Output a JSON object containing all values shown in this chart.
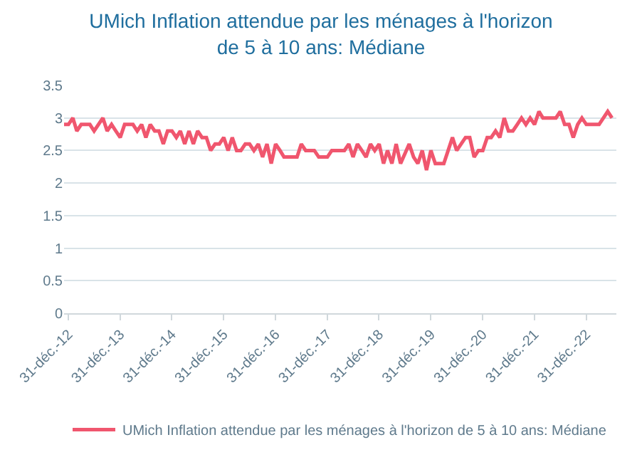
{
  "chart_data": {
    "type": "line",
    "title": "UMich Inflation attendue par les ménages à l'horizon de 5 à 10 ans: Médiane",
    "x": [
      "2012-12",
      "2013-01",
      "2013-02",
      "2013-03",
      "2013-04",
      "2013-06",
      "2013-07",
      "2013-09",
      "2013-10",
      "2013-11",
      "2013-12",
      "2014-01",
      "2014-02",
      "2014-04",
      "2014-05",
      "2014-06",
      "2014-07",
      "2014-08",
      "2014-09",
      "2014-10",
      "2014-11",
      "2014-12",
      "2015-01",
      "2015-02",
      "2015-03",
      "2015-04",
      "2015-05",
      "2015-06",
      "2015-07",
      "2015-08",
      "2015-09",
      "2015-10",
      "2015-11",
      "2015-12",
      "2016-01",
      "2016-02",
      "2016-03",
      "2016-04",
      "2016-05",
      "2016-06",
      "2016-07",
      "2016-08",
      "2016-09",
      "2016-10",
      "2016-11",
      "2016-12",
      "2017-01",
      "2017-02",
      "2017-03",
      "2017-06",
      "2017-07",
      "2017-08",
      "2017-10",
      "2017-11",
      "2017-12",
      "2018-01",
      "2018-02",
      "2018-05",
      "2018-06",
      "2018-07",
      "2018-08",
      "2018-09",
      "2018-10",
      "2018-11",
      "2018-12",
      "2019-01",
      "2019-02",
      "2019-03",
      "2019-04",
      "2019-05",
      "2019-06",
      "2019-08",
      "2019-09",
      "2019-10",
      "2019-11",
      "2019-12",
      "2020-01",
      "2020-02",
      "2020-04",
      "2020-06",
      "2020-07",
      "2020-09",
      "2020-10",
      "2020-11",
      "2020-12",
      "2021-01",
      "2021-02",
      "2021-03",
      "2021-04",
      "2021-05",
      "2021-06",
      "2021-07",
      "2021-08",
      "2021-09",
      "2021-10",
      "2021-11",
      "2021-12",
      "2022-01",
      "2022-02",
      "2022-03",
      "2022-06",
      "2022-07",
      "2022-08",
      "2022-09",
      "2022-10",
      "2022-11",
      "2022-12",
      "2023-01",
      "2023-04",
      "2023-06",
      "2023-07"
    ],
    "series": [
      {
        "name": "UMich Inflation attendue par les ménages à l'horizon de 5 à 10 ans: Médiane",
        "color": "#f0566e",
        "values": [
          2.9,
          2.9,
          3.0,
          2.8,
          2.9,
          2.9,
          2.8,
          3.0,
          2.8,
          2.9,
          2.8,
          2.7,
          2.9,
          2.9,
          2.8,
          2.9,
          2.7,
          2.9,
          2.8,
          2.8,
          2.6,
          2.8,
          2.8,
          2.7,
          2.8,
          2.6,
          2.8,
          2.6,
          2.8,
          2.7,
          2.7,
          2.5,
          2.6,
          2.6,
          2.7,
          2.5,
          2.7,
          2.5,
          2.5,
          2.6,
          2.6,
          2.5,
          2.6,
          2.4,
          2.6,
          2.3,
          2.6,
          2.5,
          2.4,
          2.4,
          2.6,
          2.5,
          2.5,
          2.4,
          2.4,
          2.4,
          2.5,
          2.5,
          2.6,
          2.4,
          2.6,
          2.5,
          2.4,
          2.6,
          2.5,
          2.6,
          2.3,
          2.5,
          2.3,
          2.6,
          2.3,
          2.6,
          2.4,
          2.3,
          2.5,
          2.2,
          2.5,
          2.3,
          2.3,
          2.7,
          2.5,
          2.7,
          2.7,
          2.4,
          2.5,
          2.5,
          2.7,
          2.7,
          2.8,
          2.7,
          3.0,
          2.8,
          2.8,
          2.9,
          3.0,
          2.9,
          3.0,
          2.9,
          3.1,
          3.0,
          3.0,
          3.1,
          2.9,
          2.9,
          2.7,
          2.9,
          3.0,
          2.9,
          2.9,
          3.1,
          3.0
        ]
      }
    ],
    "xlim": [
      "2012-12-01",
      "2023-08-01"
    ],
    "xticks": [
      {
        "value": "2012-12-31",
        "label": "31-déc.-12"
      },
      {
        "value": "2013-12-31",
        "label": "31-déc.-13"
      },
      {
        "value": "2014-12-31",
        "label": "31-déc.-14"
      },
      {
        "value": "2015-12-31",
        "label": "31-déc.-15"
      },
      {
        "value": "2016-12-31",
        "label": "31-déc.-16"
      },
      {
        "value": "2017-12-31",
        "label": "31-déc.-17"
      },
      {
        "value": "2018-12-31",
        "label": "31-déc.-18"
      },
      {
        "value": "2019-12-31",
        "label": "31-déc.-19"
      },
      {
        "value": "2020-12-31",
        "label": "31-déc.-20"
      },
      {
        "value": "2021-12-31",
        "label": "31-déc.-21"
      },
      {
        "value": "2022-12-31",
        "label": "31-déc.-22"
      }
    ],
    "ylim": [
      0,
      3.5
    ],
    "yticks": [
      0,
      0.5,
      1,
      1.5,
      2,
      2.5,
      3,
      3.5
    ],
    "grid": "y",
    "legend": "bottom",
    "marker": "none",
    "line_style": "solid"
  }
}
